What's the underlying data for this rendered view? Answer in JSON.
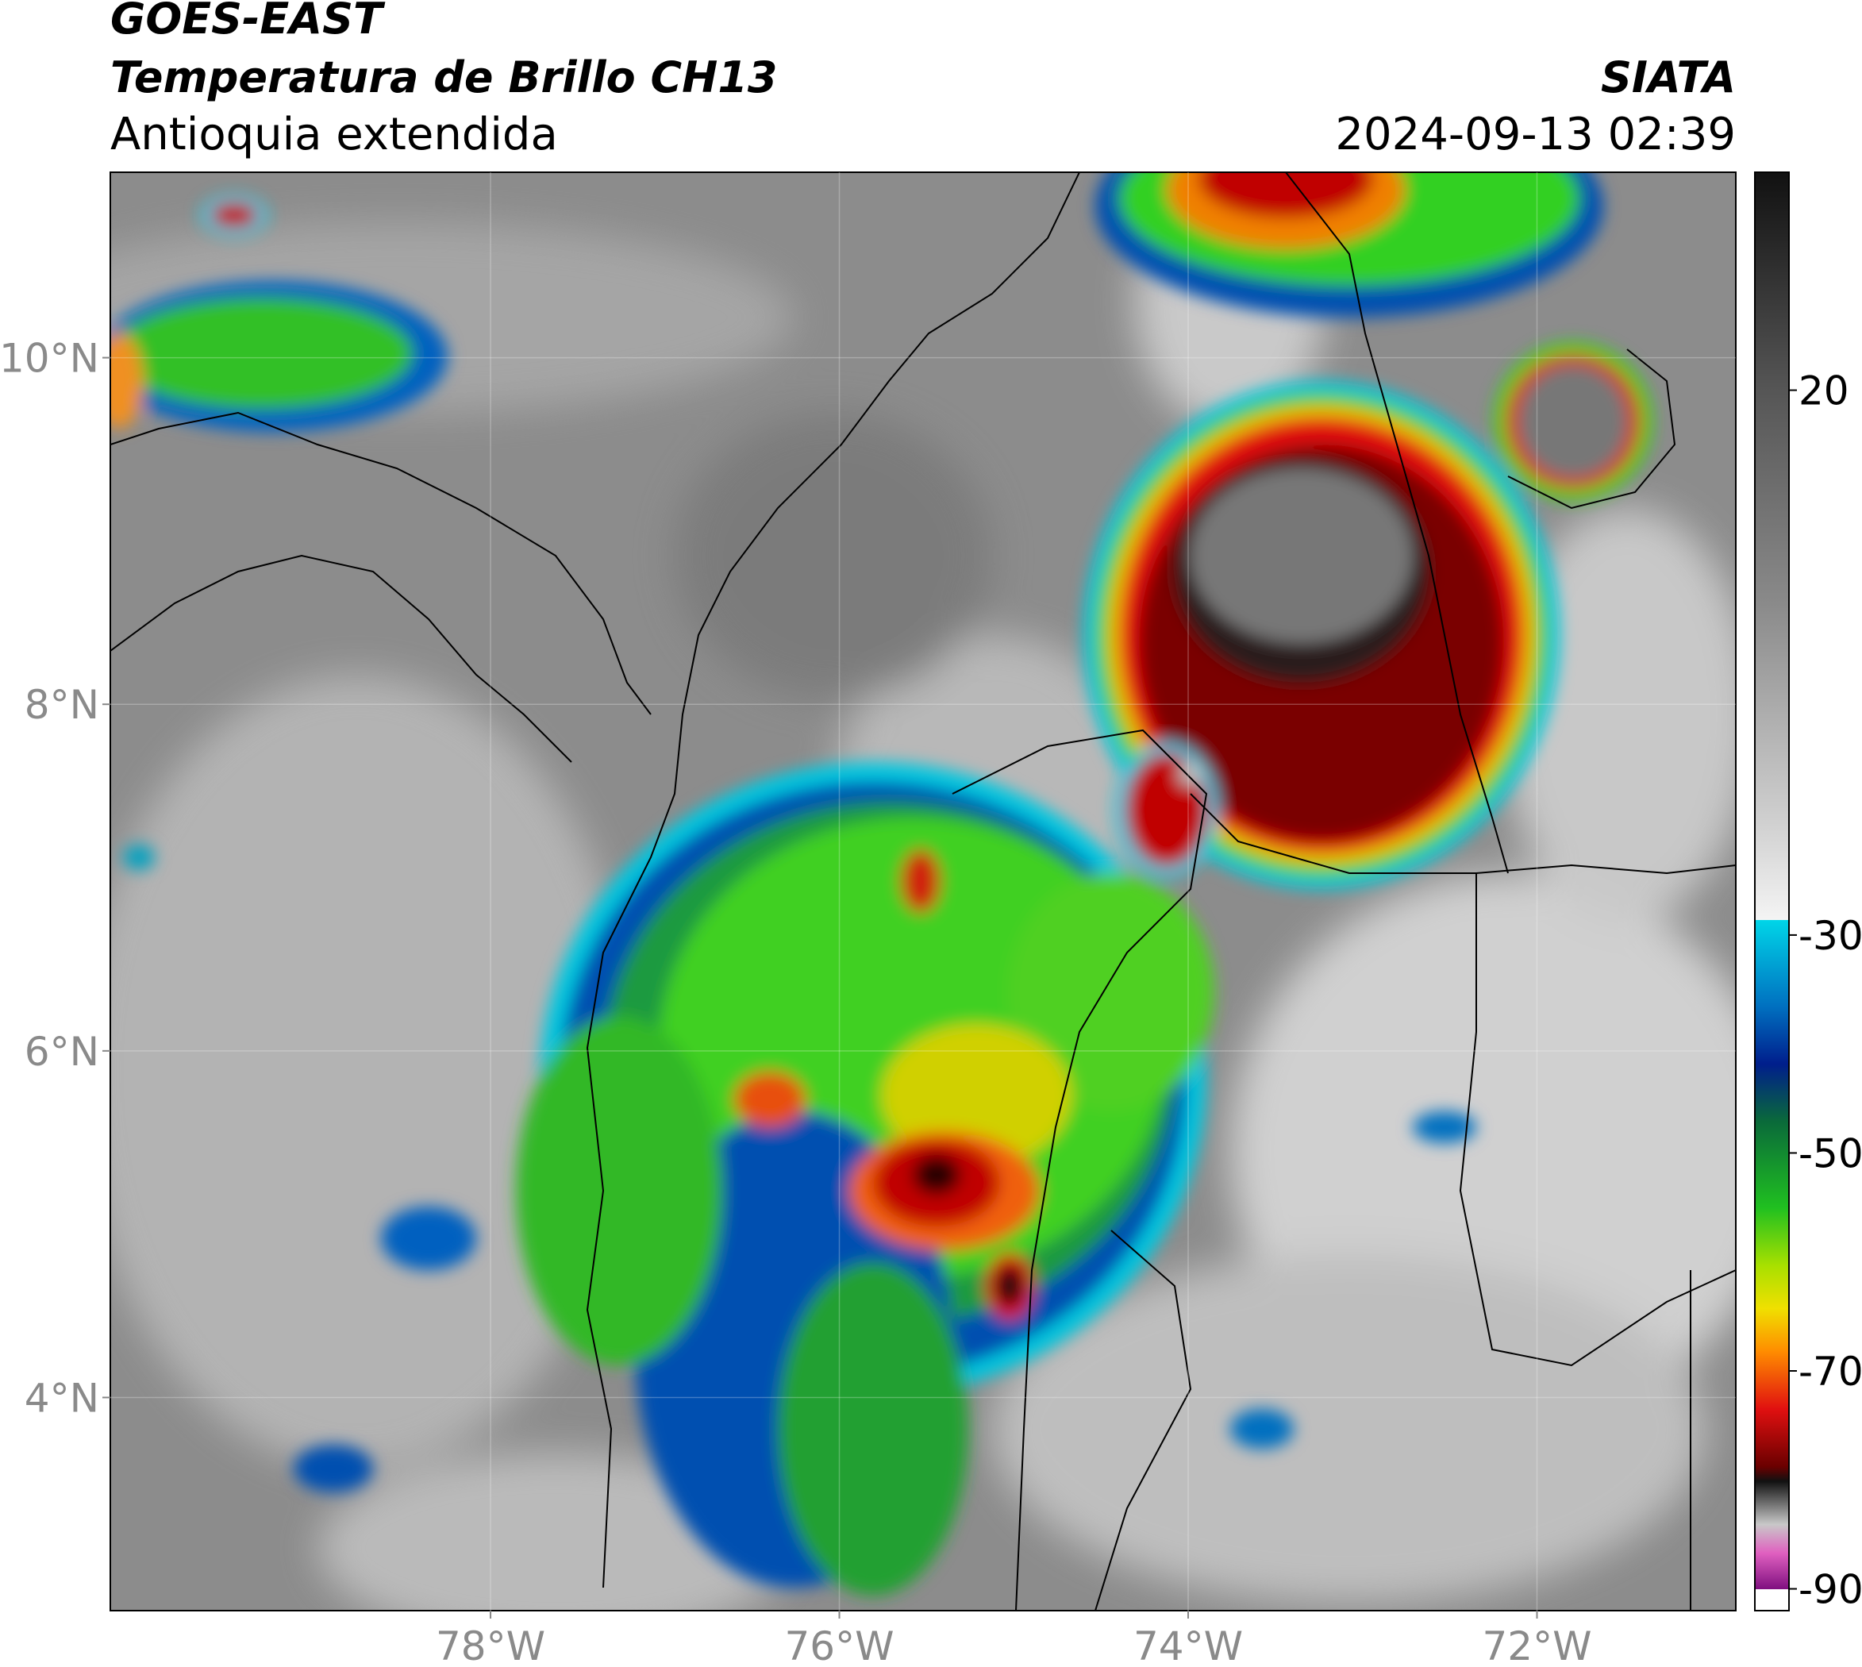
{
  "header": {
    "satellite": "GOES-EAST",
    "product": "Temperatura de Brillo CH13",
    "region": "Antioquia extendida",
    "source": "SIATA",
    "datetime": "2024-09-13 02:39"
  },
  "map": {
    "xlim": [
      -80.18,
      -70.86
    ],
    "ylim": [
      2.77,
      11.07
    ],
    "xticks": [
      {
        "value": -78,
        "label": "78°W"
      },
      {
        "value": -76,
        "label": "76°W"
      },
      {
        "value": -74,
        "label": "74°W"
      },
      {
        "value": -72,
        "label": "72°W"
      }
    ],
    "yticks": [
      {
        "value": 4,
        "label": "4°N"
      },
      {
        "value": 6,
        "label": "6°N"
      },
      {
        "value": 8,
        "label": "8°N"
      },
      {
        "value": 10,
        "label": "10°N"
      }
    ]
  },
  "colorbar": {
    "lim": [
      40,
      -92
    ],
    "ticks": [
      20,
      -30,
      -50,
      -70,
      -90
    ]
  }
}
